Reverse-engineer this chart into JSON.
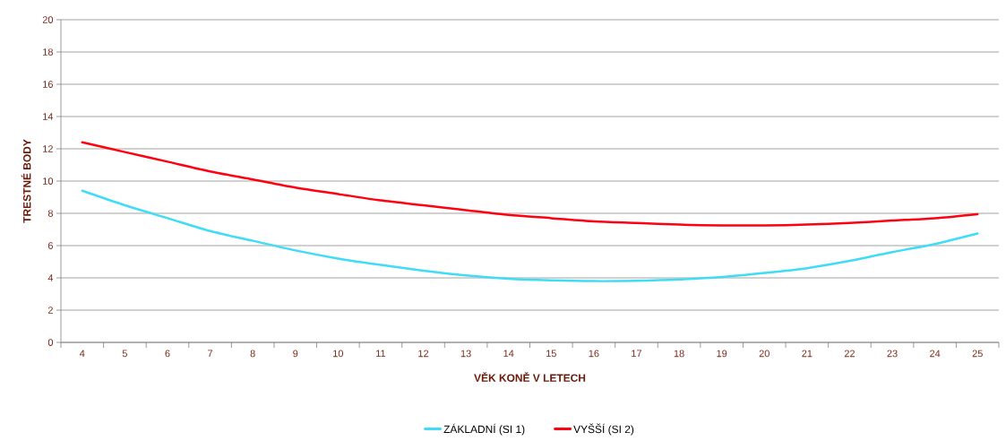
{
  "chart_data": {
    "type": "line",
    "xlabel": "VĚK KONĚ V LETECH",
    "ylabel": "TRESTNÉ BODY",
    "categories": [
      "4",
      "5",
      "6",
      "7",
      "8",
      "9",
      "10",
      "11",
      "12",
      "13",
      "14",
      "15",
      "16",
      "17",
      "18",
      "19",
      "20",
      "21",
      "22",
      "23",
      "24",
      "25"
    ],
    "ylim": [
      0,
      20
    ],
    "yticks": [
      0,
      2,
      4,
      6,
      8,
      10,
      12,
      14,
      16,
      18,
      20
    ],
    "grid": "y",
    "legend": "bottom",
    "marker": "none",
    "line_style": "solid",
    "series": [
      {
        "name": "ZÁKLADNÍ (SI 1)",
        "color": "#3fdcf7",
        "values": [
          9.4,
          8.5,
          7.7,
          6.9,
          6.3,
          5.7,
          5.2,
          4.8,
          4.45,
          4.15,
          3.95,
          3.85,
          3.8,
          3.82,
          3.9,
          4.05,
          4.3,
          4.6,
          5.05,
          5.6,
          6.1,
          6.75
        ]
      },
      {
        "name": "VYŠŠÍ (SI 2)",
        "color": "#ff0010",
        "values": [
          12.4,
          11.8,
          11.2,
          10.6,
          10.1,
          9.6,
          9.2,
          8.8,
          8.5,
          8.2,
          7.9,
          7.7,
          7.5,
          7.4,
          7.3,
          7.25,
          7.25,
          7.3,
          7.4,
          7.55,
          7.7,
          7.95
        ]
      }
    ]
  }
}
